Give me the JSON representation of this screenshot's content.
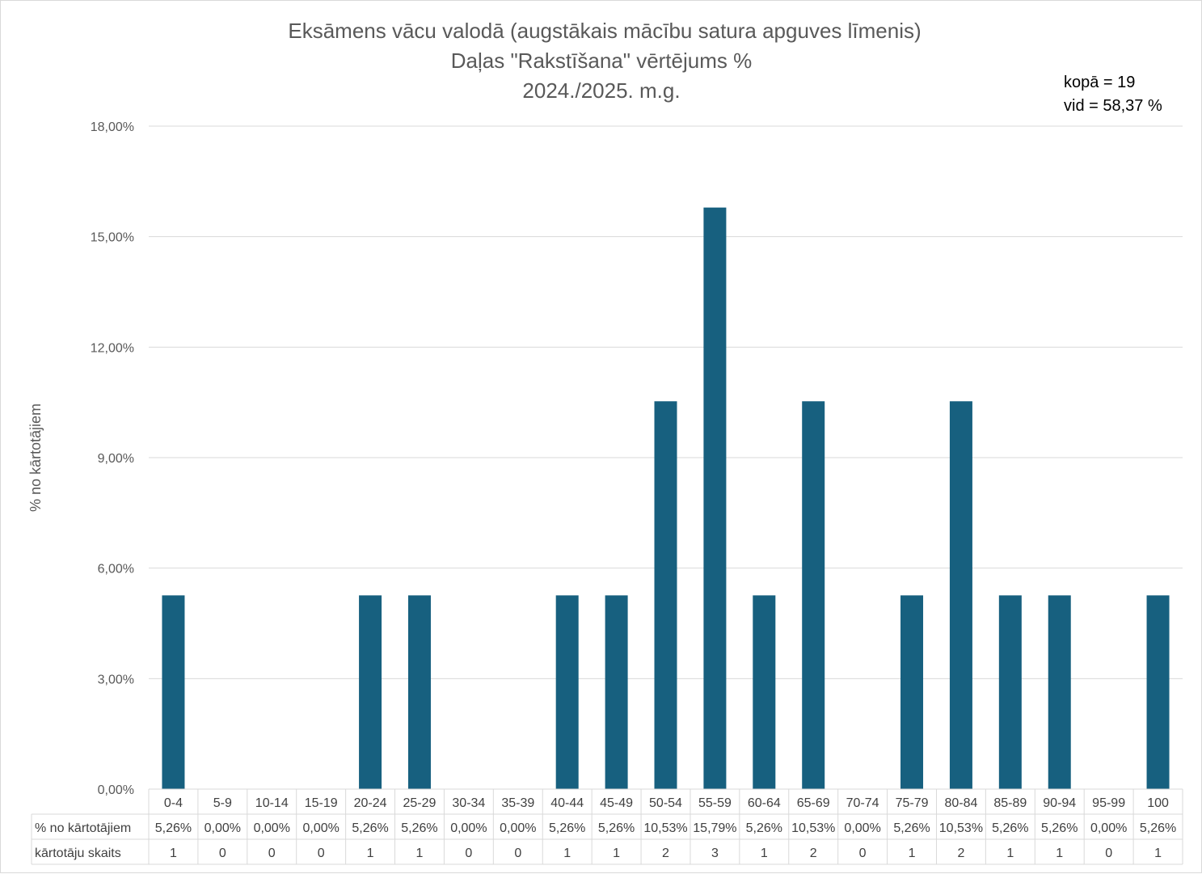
{
  "chart_data": {
    "type": "bar",
    "title_lines": [
      "Eksāmens vācu valodā (augstākais mācību satura apguves līmenis)",
      "Daļas \"Rakstīšana\" vērtējums %",
      "2024./2025. m.g."
    ],
    "stats": [
      "kopā = 19",
      "vid = 58,37 %"
    ],
    "ylabel": "% no kārtotājiem",
    "xlabel": "",
    "ylim": [
      0,
      18
    ],
    "yticks": [
      0,
      3,
      6,
      9,
      12,
      15,
      18
    ],
    "ytick_labels": [
      "0,00%",
      "3,00%",
      "6,00%",
      "9,00%",
      "12,00%",
      "15,00%",
      "18,00%"
    ],
    "categories": [
      "0-4",
      "5-9",
      "10-14",
      "15-19",
      "20-24",
      "25-29",
      "30-34",
      "35-39",
      "40-44",
      "45-49",
      "50-54",
      "55-59",
      "60-64",
      "65-69",
      "70-74",
      "75-79",
      "80-84",
      "85-89",
      "90-94",
      "95-99",
      "100"
    ],
    "series": [
      {
        "name": "% no kārtotājiem",
        "values": [
          5.26,
          0,
          0,
          0,
          5.26,
          5.26,
          0,
          0,
          5.26,
          5.26,
          10.53,
          15.79,
          5.26,
          10.53,
          0,
          5.26,
          10.53,
          5.26,
          5.26,
          0,
          5.26
        ],
        "labels": [
          "5,26%",
          "0,00%",
          "0,00%",
          "0,00%",
          "5,26%",
          "5,26%",
          "0,00%",
          "0,00%",
          "5,26%",
          "5,26%",
          "10,53%",
          "15,79%",
          "5,26%",
          "10,53%",
          "0,00%",
          "5,26%",
          "10,53%",
          "5,26%",
          "5,26%",
          "0,00%",
          "5,26%"
        ],
        "color": "#17607F"
      }
    ],
    "table": {
      "row_headers": [
        "% no kārtotājiem",
        "kārtotāju skaits"
      ],
      "counts": [
        "1",
        "0",
        "0",
        "0",
        "1",
        "1",
        "0",
        "0",
        "1",
        "1",
        "2",
        "3",
        "1",
        "2",
        "0",
        "1",
        "2",
        "1",
        "1",
        "0",
        "1"
      ]
    },
    "grid": true,
    "gridline_color": "#d9d9d9"
  }
}
